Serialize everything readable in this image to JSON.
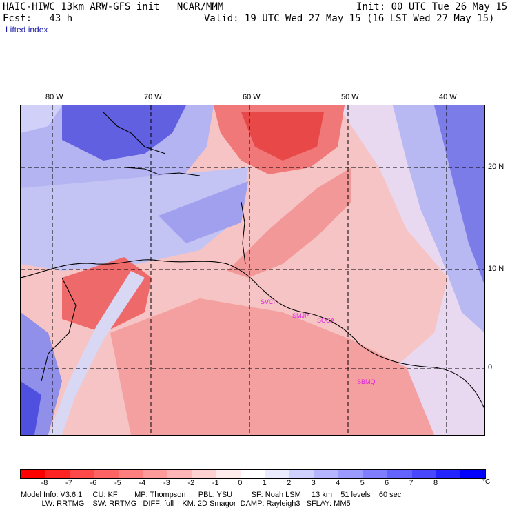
{
  "header": {
    "model_line": "HAIC-HIWC 13km ARW-GFS init   NCAR/MMM",
    "init_line": "Init: 00 UTC Tue 26 May 15",
    "fcst_line": "Fcst:   43 h",
    "valid_line": "Valid: 19 UTC Wed 27 May 15 (16 LST Wed 27 May 15)",
    "field_name": "Lifted index"
  },
  "map": {
    "longitude_labels": [
      "80 W",
      "70 W",
      "60 W",
      "50 W",
      "40 W"
    ],
    "latitude_labels": [
      "20 N",
      "10 N",
      "0"
    ],
    "stations": [
      "SVCI",
      "SMJP",
      "SOCA",
      "SBMQ"
    ],
    "colors": {
      "strong_red": "#f05050",
      "red": "#f58a8a",
      "light_red": "#f8b8b8",
      "pale_red": "#fbd6d6",
      "pale_blue": "#d6d6f8",
      "light_blue": "#b4b4f2",
      "blue": "#7c7ce8",
      "deep_blue": "#4a4ae0"
    }
  },
  "colorbar": {
    "ticks": [
      "-8",
      "-7",
      "-6",
      "-5",
      "-4",
      "-3",
      "-2",
      "-1",
      "0",
      "1",
      "2",
      "3",
      "4",
      "5",
      "6",
      "7",
      "8"
    ],
    "unit": "°C",
    "colors": [
      "#ff0000",
      "#ff2424",
      "#ff4848",
      "#ff6363",
      "#ff7e7e",
      "#ff9a9a",
      "#ffb5b5",
      "#ffd0d0",
      "#ffebeb",
      "#ffffff",
      "#ebebff",
      "#d0d0ff",
      "#b5b5ff",
      "#9a9aff",
      "#7e7eff",
      "#6363ff",
      "#4848ff",
      "#2424ff",
      "#0000ff"
    ]
  },
  "model_info": {
    "line1": "Model Info: V3.6.1     CU: KF        MP: Thompson      PBL: YSU         SF: Noah LSM     13 km    51 levels    60 sec",
    "line2": "          LW: RRTMG    SW: RRTMG   DIFF: full    KM: 2D Smagor  DAMP: Rayleigh3   SFLAY: MM5"
  }
}
